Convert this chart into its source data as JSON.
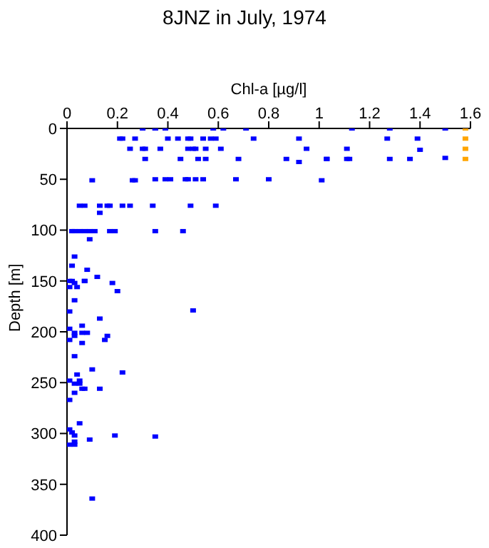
{
  "chart_data": {
    "type": "scatter",
    "title": "8JNZ in July, 1974",
    "xlabel": "Chl-a [µg/l]",
    "ylabel": "Depth [m]",
    "xlim": [
      0,
      1.6
    ],
    "xticks": [
      0,
      0.2,
      0.4,
      0.6,
      0.8,
      1,
      1.2,
      1.4,
      1.6
    ],
    "ylim": [
      400,
      0
    ],
    "yticks": [
      0,
      50,
      100,
      150,
      200,
      250,
      300,
      350,
      400
    ],
    "marker": "square",
    "grid": false,
    "legend": false,
    "series": [
      {
        "color": "#0000ff",
        "x": [
          0.3,
          0.35,
          0.35,
          0.39,
          0.58,
          0.62,
          0.71,
          1.13,
          1.28,
          1.5,
          0.21,
          0.22,
          0.27,
          0.4,
          0.44,
          0.48,
          0.49,
          0.54,
          0.57,
          0.59,
          0.74,
          0.92,
          1.27,
          1.39,
          0.25,
          0.3,
          0.31,
          0.37,
          0.48,
          0.5,
          0.51,
          0.55,
          0.61,
          0.95,
          1.11,
          1.4,
          0.31,
          0.45,
          0.52,
          0.55,
          0.68,
          0.87,
          0.92,
          1.03,
          1.03,
          1.11,
          1.12,
          1.28,
          1.36,
          1.5,
          0.1,
          0.26,
          0.27,
          0.35,
          0.39,
          0.41,
          0.47,
          0.48,
          0.51,
          0.54,
          0.67,
          0.8,
          1.01,
          0.05,
          0.07,
          0.13,
          0.16,
          0.17,
          0.22,
          0.25,
          0.34,
          0.49,
          0.59,
          0.13,
          0.02,
          0.03,
          0.05,
          0.07,
          0.09,
          0.11,
          0.17,
          0.19,
          0.35,
          0.46,
          0.09,
          0.03,
          0.02,
          0.08,
          0.12,
          0.01,
          0.02,
          0.07,
          0.07,
          0.03,
          0.18,
          0.01,
          0.04,
          0.2,
          0.03,
          0.5,
          0.01,
          0.13,
          0.06,
          0.01,
          0.03,
          0.06,
          0.08,
          0.03,
          0.16,
          0.01,
          0.15,
          0.06,
          0.03,
          0.1,
          0.22,
          0.04,
          0.01,
          0.05,
          0.03,
          0.05,
          0.06,
          0.07,
          0.13,
          0.03,
          0.01,
          0.05,
          0.01,
          0.02,
          0.03,
          0.19,
          0.35,
          0.09,
          0.03,
          0.01,
          0.03,
          0.1
        ],
        "values": [
          0,
          0,
          0,
          0,
          0,
          0,
          0,
          0,
          0,
          0,
          10,
          10,
          10,
          10,
          10,
          10,
          10,
          10,
          10,
          10,
          10,
          10,
          10,
          10,
          20,
          20,
          20,
          20,
          20,
          20,
          20,
          20,
          20,
          20,
          20,
          21,
          30,
          30,
          30,
          30,
          30,
          30,
          33,
          30,
          30,
          30,
          30,
          30,
          30,
          29,
          51,
          51,
          51,
          50,
          50,
          50,
          50,
          50,
          50,
          50,
          50,
          50,
          51,
          76,
          76,
          76,
          76,
          76,
          76,
          76,
          76,
          76,
          76,
          83,
          101,
          101,
          101,
          101,
          101,
          101,
          101,
          101,
          101,
          101,
          109,
          126,
          135,
          139,
          146,
          150,
          150,
          150,
          150,
          152,
          152,
          156,
          156,
          160,
          169,
          179,
          180,
          187,
          194,
          197,
          201,
          201,
          201,
          204,
          204,
          208,
          208,
          211,
          224,
          237,
          240,
          242,
          248,
          248,
          251,
          251,
          256,
          256,
          256,
          260,
          267,
          290,
          296,
          299,
          302,
          302,
          303,
          306,
          308,
          311,
          311,
          364
        ]
      },
      {
        "color": "#ffa500",
        "x": [
          1.58,
          1.58,
          1.58,
          1.58
        ],
        "values": [
          0,
          10,
          20,
          30
        ]
      }
    ]
  }
}
